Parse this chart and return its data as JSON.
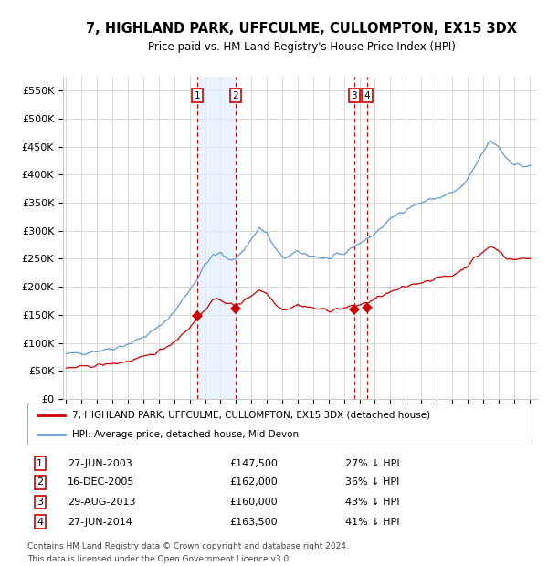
{
  "title": "7, HIGHLAND PARK, UFFCULME, CULLOMPTON, EX15 3DX",
  "subtitle": "Price paid vs. HM Land Registry's House Price Index (HPI)",
  "legend_label_red": "7, HIGHLAND PARK, UFFCULME, CULLOMPTON, EX15 3DX (detached house)",
  "legend_label_blue": "HPI: Average price, detached house, Mid Devon",
  "transactions": [
    {
      "num": 1,
      "date": "27-JUN-2003",
      "price": 147500,
      "pct": "27% ↓ HPI"
    },
    {
      "num": 2,
      "date": "16-DEC-2005",
      "price": 162000,
      "pct": "36% ↓ HPI"
    },
    {
      "num": 3,
      "date": "29-AUG-2013",
      "price": 160000,
      "pct": "43% ↓ HPI"
    },
    {
      "num": 4,
      "date": "27-JUN-2014",
      "price": 163500,
      "pct": "41% ↓ HPI"
    }
  ],
  "transaction_dates_decimal": [
    2003.49,
    2005.96,
    2013.66,
    2014.49
  ],
  "transaction_prices": [
    147500,
    162000,
    160000,
    163500
  ],
  "footnote1": "Contains HM Land Registry data © Crown copyright and database right 2024.",
  "footnote2": "This data is licensed under the Open Government Licence v3.0.",
  "ylim": [
    0,
    575000
  ],
  "xlim_start": 1994.8,
  "xlim_end": 2025.5,
  "red_color": "#cc0000",
  "blue_color": "#6699cc",
  "background_color": "#ffffff",
  "grid_color": "#cccccc",
  "shade_color": "#ddeeff",
  "vline_color": "#cc0000",
  "box_color": "#cc0000",
  "blue_anchors_t": [
    1995.0,
    1996.0,
    1997.0,
    1998.0,
    1999.0,
    2000.0,
    2001.0,
    2002.0,
    2003.0,
    2003.5,
    2004.0,
    2004.5,
    2005.0,
    2005.5,
    2006.0,
    2006.5,
    2007.0,
    2007.5,
    2008.0,
    2008.5,
    2009.0,
    2009.5,
    2010.0,
    2010.5,
    2011.0,
    2011.5,
    2012.0,
    2012.5,
    2013.0,
    2013.5,
    2014.0,
    2014.5,
    2015.0,
    2015.5,
    2016.0,
    2016.5,
    2017.0,
    2017.5,
    2018.0,
    2018.5,
    2019.0,
    2019.5,
    2020.0,
    2020.5,
    2021.0,
    2021.5,
    2022.0,
    2022.5,
    2023.0,
    2023.5,
    2024.0,
    2024.5,
    2025.0
  ],
  "blue_anchors_v": [
    80000,
    82000,
    86000,
    90000,
    98000,
    110000,
    128000,
    155000,
    195000,
    215000,
    240000,
    255000,
    260000,
    248000,
    252000,
    265000,
    285000,
    305000,
    295000,
    270000,
    252000,
    255000,
    262000,
    258000,
    255000,
    252000,
    250000,
    255000,
    258000,
    270000,
    278000,
    285000,
    295000,
    308000,
    320000,
    330000,
    338000,
    345000,
    350000,
    355000,
    358000,
    362000,
    368000,
    375000,
    390000,
    415000,
    440000,
    460000,
    450000,
    430000,
    420000,
    415000,
    415000
  ],
  "red_anchors_t": [
    1995.0,
    1996.0,
    1997.0,
    1998.0,
    1999.0,
    2000.0,
    2001.0,
    2002.0,
    2003.0,
    2003.5,
    2004.0,
    2004.5,
    2005.0,
    2005.5,
    2006.0,
    2006.5,
    2007.0,
    2007.5,
    2008.0,
    2008.5,
    2009.0,
    2009.5,
    2010.0,
    2010.5,
    2011.0,
    2011.5,
    2012.0,
    2012.5,
    2013.0,
    2013.5,
    2014.0,
    2014.5,
    2015.0,
    2015.5,
    2016.0,
    2016.5,
    2017.0,
    2017.5,
    2018.0,
    2018.5,
    2019.0,
    2019.5,
    2020.0,
    2020.5,
    2021.0,
    2021.5,
    2022.0,
    2022.5,
    2023.0,
    2023.5,
    2024.0,
    2024.5,
    2025.0
  ],
  "red_anchors_v": [
    55000,
    57000,
    60000,
    63000,
    67000,
    74000,
    85000,
    102000,
    128000,
    143000,
    160000,
    175000,
    178000,
    170000,
    166000,
    175000,
    185000,
    195000,
    188000,
    172000,
    160000,
    162000,
    168000,
    165000,
    162000,
    160000,
    158000,
    160000,
    162000,
    165000,
    168000,
    172000,
    178000,
    185000,
    190000,
    195000,
    200000,
    205000,
    208000,
    212000,
    215000,
    218000,
    220000,
    228000,
    238000,
    252000,
    262000,
    272000,
    265000,
    252000,
    248000,
    250000,
    252000
  ]
}
